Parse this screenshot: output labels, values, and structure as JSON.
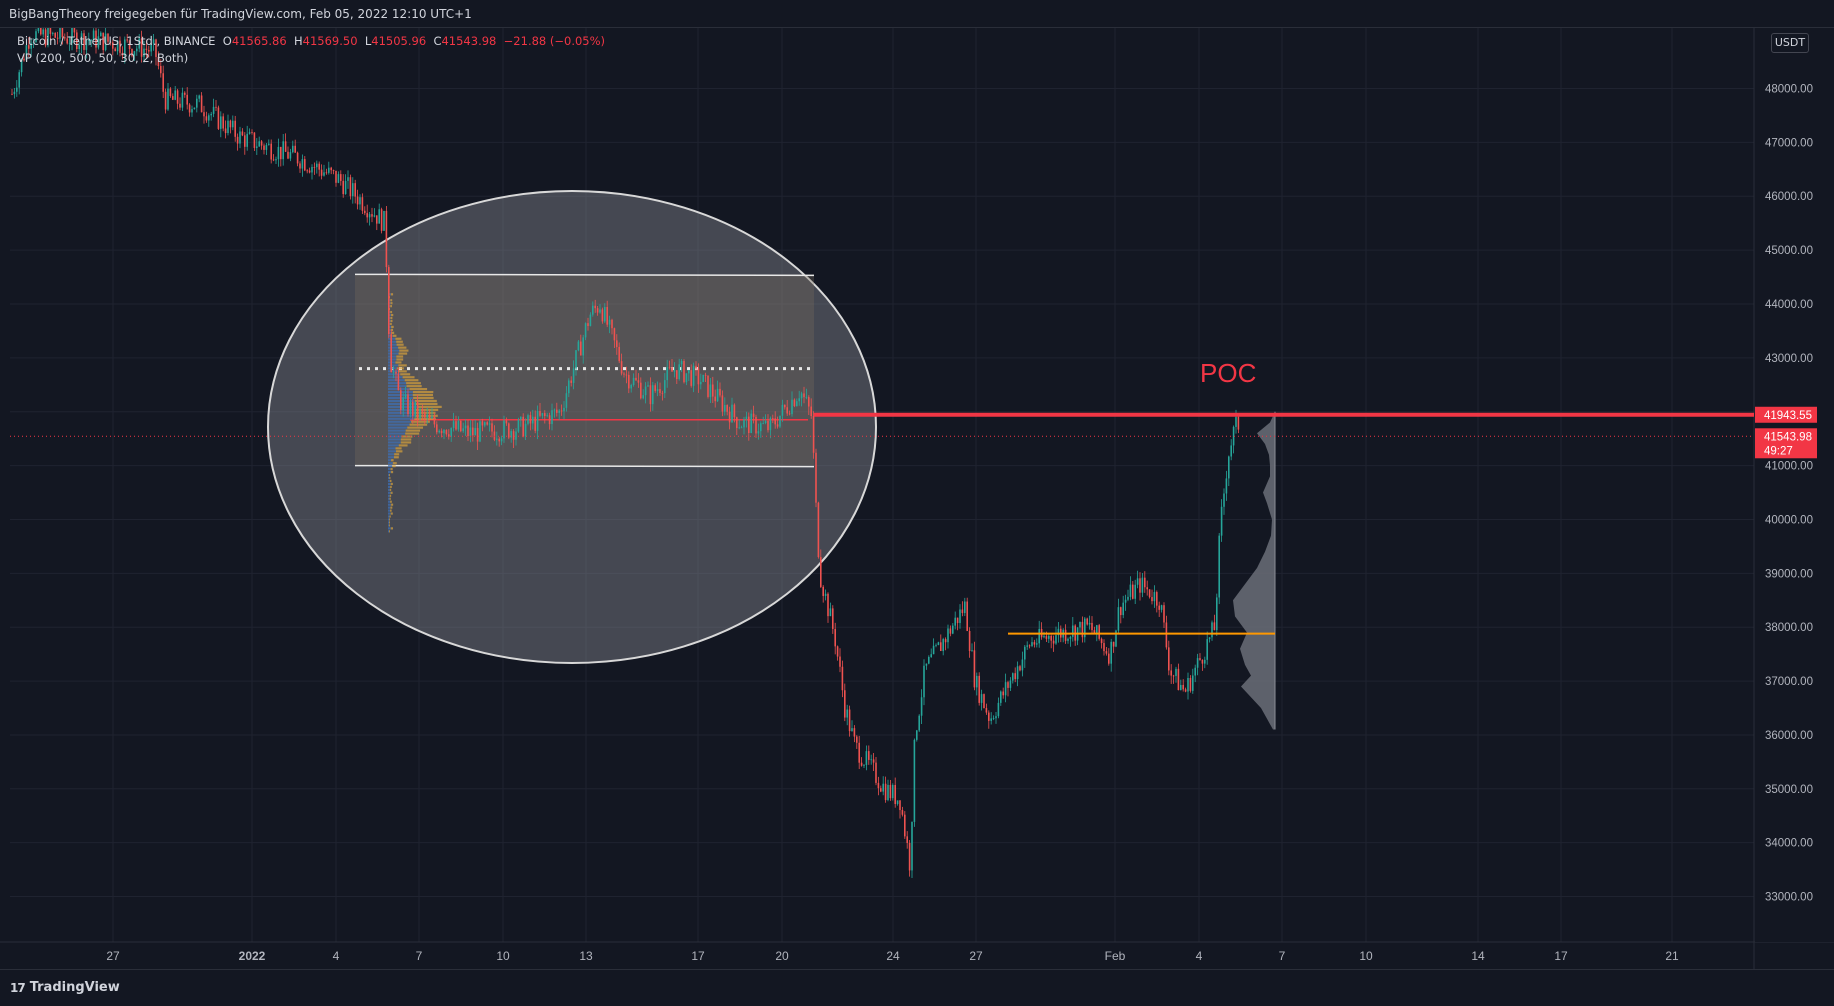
{
  "header": {
    "title": "BigBangTheory freigegeben für TradingView.com, Feb 05, 2022 12:10 UTC+1"
  },
  "legend": {
    "symbol": "Bitcoin / TetherUS, 1Std., BINANCE",
    "o_label": "O",
    "o_value": "41565.86",
    "h_label": "H",
    "h_value": "41569.50",
    "l_label": "L",
    "l_value": "41505.96",
    "c_label": "C",
    "c_value": "41543.98",
    "change": "−21.88 (−0.05%)",
    "indicator": "VP (200, 500, 50, 30, 2, Both)"
  },
  "currency": "USDT",
  "footer": {
    "brand": "TradingView",
    "logo_icon": "tradingview-logo-icon"
  },
  "colors": {
    "up": "#26a69a",
    "down": "#ef5350",
    "poc": "#f23645",
    "bg": "#131722",
    "volume_profile": "#6b6e78",
    "orange_line": "#ff9800"
  },
  "chart_data": {
    "type": "candlestick",
    "y_axis": {
      "ticks": [
        "48000.00",
        "47000.00",
        "46000.00",
        "45000.00",
        "44000.00",
        "43000.00",
        "42000.00",
        "41000.00",
        "40000.00",
        "39000.00",
        "38000.00",
        "37000.00",
        "36000.00",
        "35000.00",
        "34000.00",
        "33000.00"
      ],
      "tick_values": [
        48000,
        47000,
        46000,
        45000,
        44000,
        43000,
        42000,
        41000,
        40000,
        39000,
        38000,
        37000,
        36000,
        35000,
        34000,
        33000
      ],
      "range": [
        32500,
        49500
      ]
    },
    "x_axis": {
      "ticks": [
        "27",
        "2022",
        "4",
        "7",
        "10",
        "13",
        "17",
        "20",
        "24",
        "27",
        "Feb",
        "4",
        "7",
        "10",
        "14",
        "17",
        "21"
      ]
    },
    "price_labels": [
      {
        "value": 41943.55,
        "text": "41943.55"
      },
      {
        "value": 41543.98,
        "text": "41543.98",
        "countdown": "49:27"
      }
    ],
    "annotations": {
      "poc_label": "POC",
      "poc_price": 41943.55,
      "range_box": {
        "top": 44550,
        "bottom": 41000,
        "mid_dotted": 42800,
        "red_line": 41850
      },
      "orange_line": 37880
    },
    "grid": true
  }
}
